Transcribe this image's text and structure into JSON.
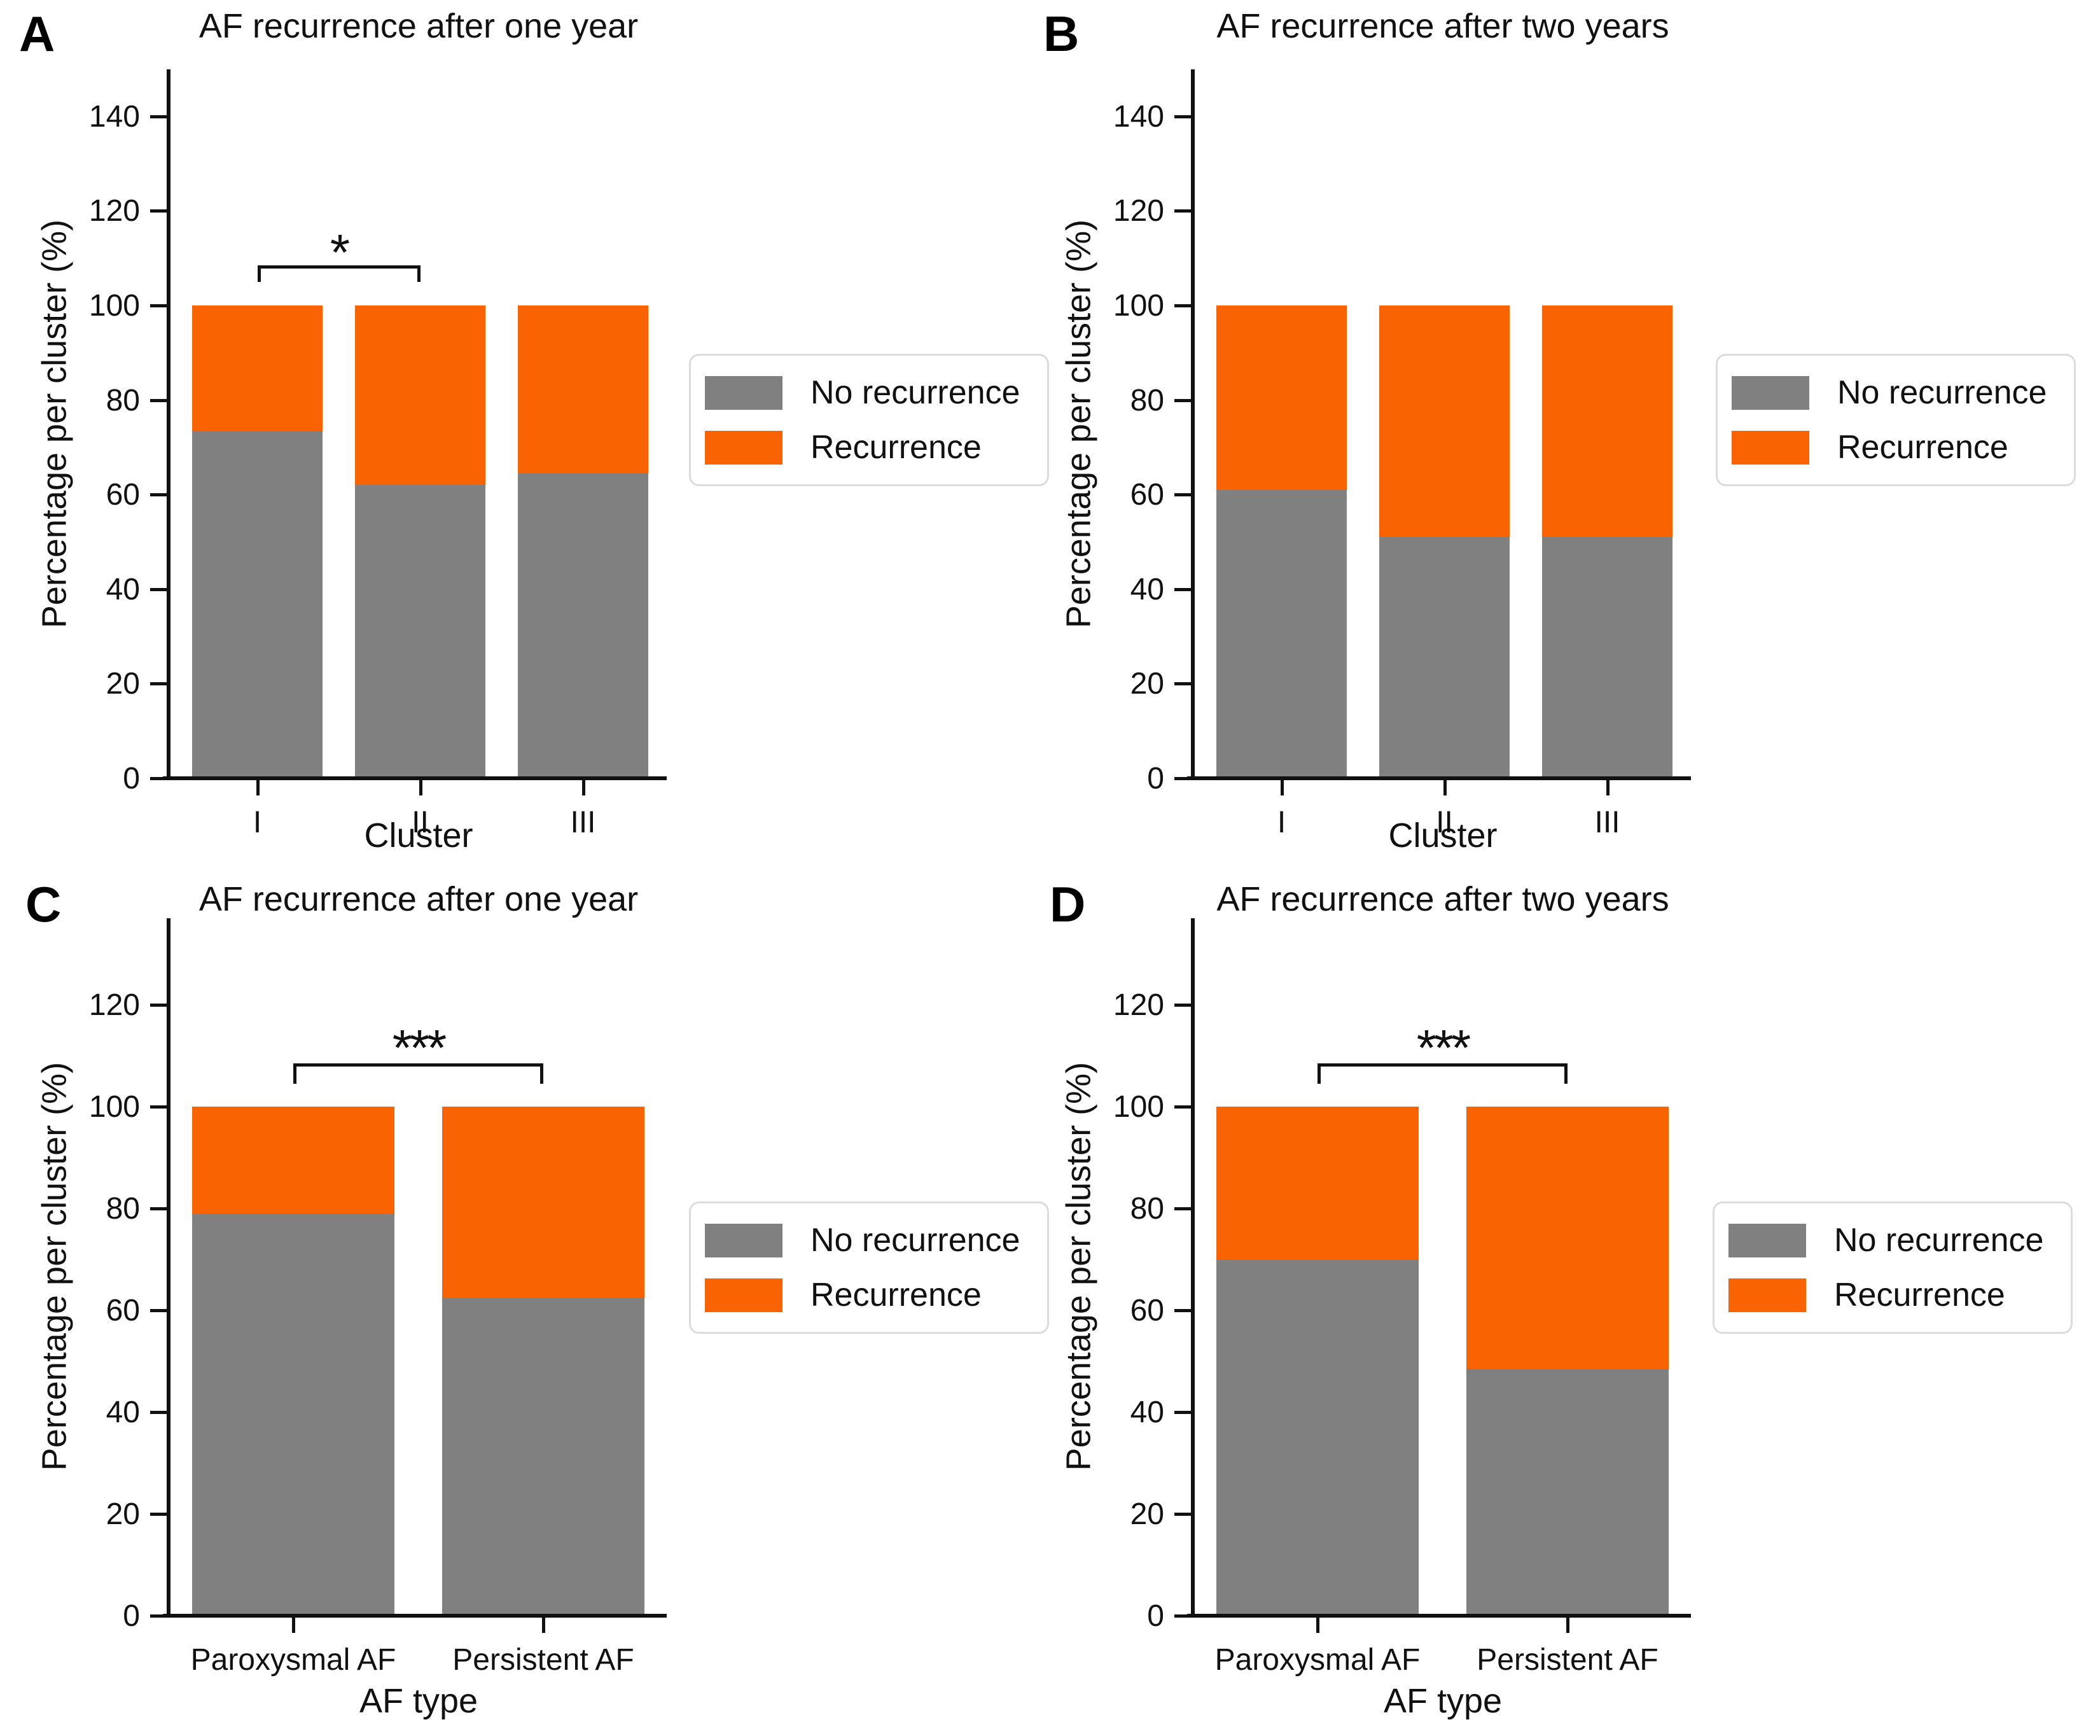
{
  "figure": {
    "legend": {
      "items": [
        {
          "label": "No recurrence",
          "color": "#808080"
        },
        {
          "label": "Recurrence",
          "color": "#F96302"
        }
      ]
    },
    "colors": {
      "axis": "#111111",
      "background": "#ffffff",
      "legend_border": "#dcdcdc"
    }
  },
  "chart_data": [
    {
      "panel": "A",
      "type": "bar",
      "stacked": true,
      "title": "AF recurrence after one year",
      "xlabel": "Cluster",
      "ylabel": "Percentage per cluster (%)",
      "categories": [
        "I",
        "II",
        "III"
      ],
      "series": [
        {
          "name": "No recurrence",
          "values": [
            73.5,
            62,
            64.5
          ]
        },
        {
          "name": "Recurrence",
          "values": [
            26.5,
            38,
            35.5
          ]
        }
      ],
      "yticks": [
        0,
        20,
        40,
        60,
        80,
        100,
        120,
        140
      ],
      "ylim": [
        0,
        150
      ],
      "grid": false,
      "legend_position": "right",
      "significance": {
        "from": 0,
        "to": 1,
        "label": "*",
        "bracket_y": 108.5,
        "bracket_drop": 3.5,
        "label_y": 116.5
      }
    },
    {
      "panel": "B",
      "type": "bar",
      "stacked": true,
      "title": "AF recurrence after two years",
      "xlabel": "Cluster",
      "ylabel": "Percentage per cluster (%)",
      "categories": [
        "I",
        "II",
        "III"
      ],
      "series": [
        {
          "name": "No recurrence",
          "values": [
            61,
            51,
            51
          ]
        },
        {
          "name": "Recurrence",
          "values": [
            39,
            49,
            49
          ]
        }
      ],
      "yticks": [
        0,
        20,
        40,
        60,
        80,
        100,
        120,
        140
      ],
      "ylim": [
        0,
        150
      ],
      "grid": false,
      "legend_position": "right",
      "significance": null
    },
    {
      "panel": "C",
      "type": "bar",
      "stacked": true,
      "title": "AF recurrence after one year",
      "xlabel": "AF type",
      "ylabel": "Percentage per cluster (%)",
      "categories": [
        "Paroxysmal AF",
        "Persistent AF"
      ],
      "series": [
        {
          "name": "No recurrence",
          "values": [
            79,
            62.5
          ]
        },
        {
          "name": "Recurrence",
          "values": [
            21,
            37.5
          ]
        }
      ],
      "yticks": [
        0,
        20,
        40,
        60,
        80,
        100,
        120
      ],
      "ylim": [
        0,
        137
      ],
      "grid": false,
      "legend_position": "right",
      "significance": {
        "from": 0,
        "to": 1,
        "label": "***",
        "bracket_y": 108.5,
        "bracket_drop": 4,
        "label_y": 116.5
      }
    },
    {
      "panel": "D",
      "type": "bar",
      "stacked": true,
      "title": "AF recurrence after two years",
      "xlabel": "AF type",
      "ylabel": "Percentage per cluster (%)",
      "categories": [
        "Paroxysmal AF",
        "Persistent AF"
      ],
      "series": [
        {
          "name": "No recurrence",
          "values": [
            70,
            48.5
          ]
        },
        {
          "name": "Recurrence",
          "values": [
            30,
            51.5
          ]
        }
      ],
      "yticks": [
        0,
        20,
        40,
        60,
        80,
        100,
        120
      ],
      "ylim": [
        0,
        137
      ],
      "grid": false,
      "legend_position": "right",
      "significance": {
        "from": 0,
        "to": 1,
        "label": "***",
        "bracket_y": 108.5,
        "bracket_drop": 4,
        "label_y": 116.5
      }
    }
  ]
}
